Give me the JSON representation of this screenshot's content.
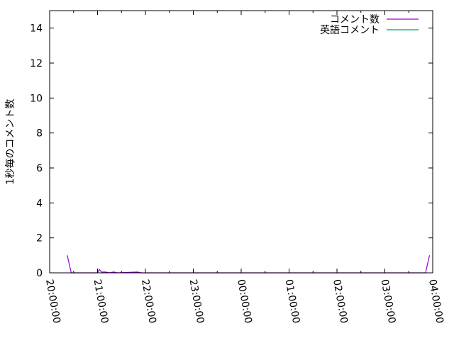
{
  "chart_data": {
    "type": "line",
    "title": "",
    "xlabel": "",
    "ylabel": "1秒毎のコメント数",
    "xlim": [
      "20:00:00",
      "04:00:00"
    ],
    "ylim": [
      0,
      15
    ],
    "x_tick_labels": [
      "20:00:00",
      "21:00:00",
      "22:00:00",
      "23:00:00",
      "00:00:00",
      "01:00:00",
      "02:00:00",
      "03:00:00",
      "04:00:00"
    ],
    "y_tick_labels": [
      "0",
      "2",
      "4",
      "6",
      "8",
      "10",
      "12",
      "14"
    ],
    "grid": false,
    "legend_position": "top-right",
    "series": [
      {
        "name": "コメント数",
        "color": "#9400d3",
        "points": [
          [
            "20:22:00",
            1
          ],
          [
            "20:27:00",
            0
          ],
          [
            "21:00:00",
            0
          ],
          [
            "21:02:00",
            0.2
          ],
          [
            "21:05:00",
            0.05
          ],
          [
            "21:10:00",
            0.05
          ],
          [
            "21:15:00",
            0
          ],
          [
            "21:20:00",
            0.05
          ],
          [
            "21:25:00",
            0
          ],
          [
            "21:50:00",
            0.05
          ],
          [
            "21:55:00",
            0
          ],
          [
            "23:55:00",
            0
          ],
          [
            "03:51:00",
            0
          ],
          [
            "03:56:00",
            1
          ]
        ]
      },
      {
        "name": "英語コメント",
        "color": "#009e73",
        "points": [
          [
            "21:05:00",
            0
          ],
          [
            "21:10:00",
            0.03
          ],
          [
            "21:15:00",
            0
          ]
        ]
      }
    ]
  }
}
